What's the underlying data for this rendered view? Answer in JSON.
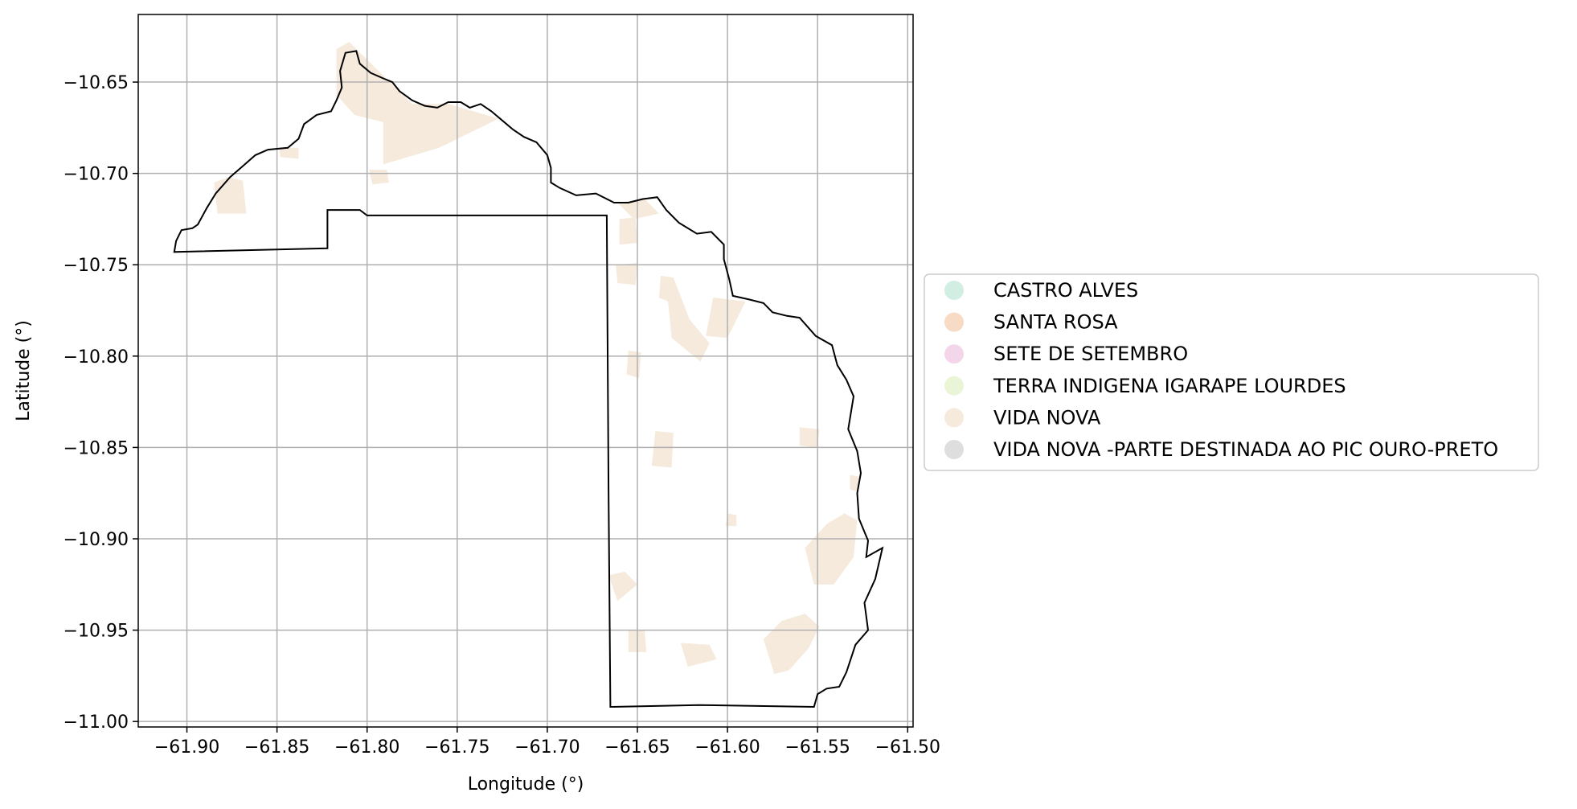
{
  "chart_data": {
    "type": "map",
    "title": "",
    "xlabel": "Longitude (°)",
    "ylabel": "Latitude (°)",
    "xlim": [
      -61.927,
      -61.497
    ],
    "ylim": [
      -11.003,
      -10.613
    ],
    "x_ticks": [
      -61.9,
      -61.85,
      -61.8,
      -61.75,
      -61.7,
      -61.65,
      -61.6,
      -61.55,
      -61.5
    ],
    "x_tick_labels": [
      "−61.90",
      "−61.85",
      "−61.80",
      "−61.75",
      "−61.70",
      "−61.65",
      "−61.60",
      "−61.55",
      "−61.50"
    ],
    "y_ticks": [
      -10.65,
      -10.7,
      -10.75,
      -10.8,
      -10.85,
      -10.9,
      -10.95,
      -11.0
    ],
    "y_tick_labels": [
      "−10.65",
      "−10.70",
      "−10.75",
      "−10.80",
      "−10.85",
      "−10.90",
      "−10.95",
      "−11.00"
    ],
    "grid": true,
    "legend_position": "right",
    "series": [
      {
        "name": "CASTRO ALVES",
        "color": "#d2ede2"
      },
      {
        "name": "SANTA ROSA",
        "color": "#f8dbc5"
      },
      {
        "name": "SETE DE SETEMBRO",
        "color": "#f4d6ea"
      },
      {
        "name": "TERRA INDIGENA IGARAPE LOURDES",
        "color": "#eaf5d8"
      },
      {
        "name": "VIDA NOVA",
        "color": "#f5eadc"
      },
      {
        "name": "VIDA NOVA -PARTE DESTINADA AO PIC OURO-PRETO",
        "color": "#dedede"
      }
    ],
    "boundary": [
      [
        -61.907,
        -10.743
      ],
      [
        -61.906,
        -10.737
      ],
      [
        -61.903,
        -10.731
      ],
      [
        -61.897,
        -10.73
      ],
      [
        -61.894,
        -10.728
      ],
      [
        -61.889,
        -10.719
      ],
      [
        -61.884,
        -10.711
      ],
      [
        -61.876,
        -10.702
      ],
      [
        -61.869,
        -10.696
      ],
      [
        -61.862,
        -10.69
      ],
      [
        -61.855,
        -10.687
      ],
      [
        -61.844,
        -10.686
      ],
      [
        -61.838,
        -10.681
      ],
      [
        -61.835,
        -10.673
      ],
      [
        -61.828,
        -10.668
      ],
      [
        -61.82,
        -10.666
      ],
      [
        -61.817,
        -10.66
      ],
      [
        -61.814,
        -10.653
      ],
      [
        -61.815,
        -10.644
      ],
      [
        -61.812,
        -10.634
      ],
      [
        -61.806,
        -10.633
      ],
      [
        -61.804,
        -10.64
      ],
      [
        -61.798,
        -10.645
      ],
      [
        -61.791,
        -10.648
      ],
      [
        -61.786,
        -10.65
      ],
      [
        -61.782,
        -10.655
      ],
      [
        -61.775,
        -10.66
      ],
      [
        -61.768,
        -10.663
      ],
      [
        -61.761,
        -10.664
      ],
      [
        -61.755,
        -10.661
      ],
      [
        -61.748,
        -10.661
      ],
      [
        -61.743,
        -10.664
      ],
      [
        -61.737,
        -10.662
      ],
      [
        -61.731,
        -10.666
      ],
      [
        -61.725,
        -10.671
      ],
      [
        -61.719,
        -10.676
      ],
      [
        -61.713,
        -10.68
      ],
      [
        -61.706,
        -10.683
      ],
      [
        -61.7,
        -10.69
      ],
      [
        -61.698,
        -10.697
      ],
      [
        -61.698,
        -10.705
      ],
      [
        -61.693,
        -10.708
      ],
      [
        -61.684,
        -10.712
      ],
      [
        -61.673,
        -10.711
      ],
      [
        -61.663,
        -10.716
      ],
      [
        -61.655,
        -10.716
      ],
      [
        -61.647,
        -10.714
      ],
      [
        -61.639,
        -10.713
      ],
      [
        -61.634,
        -10.72
      ],
      [
        -61.627,
        -10.727
      ],
      [
        -61.617,
        -10.733
      ],
      [
        -61.609,
        -10.732
      ],
      [
        -61.602,
        -10.739
      ],
      [
        -61.602,
        -10.747
      ],
      [
        -61.599,
        -10.758
      ],
      [
        -61.597,
        -10.767
      ],
      [
        -61.588,
        -10.769
      ],
      [
        -61.58,
        -10.771
      ],
      [
        -61.575,
        -10.776
      ],
      [
        -61.567,
        -10.778
      ],
      [
        -61.56,
        -10.779
      ],
      [
        -61.551,
        -10.789
      ],
      [
        -61.542,
        -10.794
      ],
      [
        -61.539,
        -10.805
      ],
      [
        -61.534,
        -10.813
      ],
      [
        -61.53,
        -10.822
      ],
      [
        -61.533,
        -10.84
      ],
      [
        -61.528,
        -10.852
      ],
      [
        -61.526,
        -10.864
      ],
      [
        -61.528,
        -10.875
      ],
      [
        -61.527,
        -10.889
      ],
      [
        -61.522,
        -10.901
      ],
      [
        -61.523,
        -10.91
      ],
      [
        -61.514,
        -10.905
      ],
      [
        -61.518,
        -10.922
      ],
      [
        -61.524,
        -10.935
      ],
      [
        -61.522,
        -10.95
      ],
      [
        -61.529,
        -10.958
      ],
      [
        -61.534,
        -10.973
      ],
      [
        -61.538,
        -10.981
      ],
      [
        -61.545,
        -10.982
      ],
      [
        -61.55,
        -10.985
      ],
      [
        -61.552,
        -10.992
      ],
      [
        -61.616,
        -10.991
      ],
      [
        -61.665,
        -10.992
      ],
      [
        -61.666,
        -10.873
      ],
      [
        -61.667,
        -10.723
      ],
      [
        -61.8,
        -10.723
      ],
      [
        -61.804,
        -10.72
      ],
      [
        -61.822,
        -10.72
      ],
      [
        -61.822,
        -10.741
      ],
      [
        -61.907,
        -10.743
      ]
    ],
    "vida_nova_patches": [
      [
        [
          -61.817,
          -10.632
        ],
        [
          -61.81,
          -10.628
        ],
        [
          -61.775,
          -10.662
        ],
        [
          -61.755,
          -10.662
        ],
        [
          -61.727,
          -10.67
        ],
        [
          -61.76,
          -10.686
        ],
        [
          -61.791,
          -10.695
        ],
        [
          -61.791,
          -10.672
        ],
        [
          -61.807,
          -10.668
        ],
        [
          -61.817,
          -10.657
        ]
      ],
      [
        [
          -61.885,
          -10.705
        ],
        [
          -61.877,
          -10.702
        ],
        [
          -61.869,
          -10.704
        ],
        [
          -61.867,
          -10.722
        ],
        [
          -61.883,
          -10.722
        ]
      ],
      [
        [
          -61.849,
          -10.686
        ],
        [
          -61.838,
          -10.686
        ],
        [
          -61.838,
          -10.692
        ],
        [
          -61.848,
          -10.691
        ]
      ],
      [
        [
          -61.799,
          -10.698
        ],
        [
          -61.789,
          -10.698
        ],
        [
          -61.788,
          -10.705
        ],
        [
          -61.797,
          -10.706
        ]
      ],
      [
        [
          -61.661,
          -10.716
        ],
        [
          -61.646,
          -10.714
        ],
        [
          -61.638,
          -10.722
        ],
        [
          -61.652,
          -10.725
        ]
      ],
      [
        [
          -61.66,
          -10.725
        ],
        [
          -61.651,
          -10.724
        ],
        [
          -61.65,
          -10.738
        ],
        [
          -61.66,
          -10.739
        ]
      ],
      [
        [
          -61.662,
          -10.75
        ],
        [
          -61.65,
          -10.749
        ],
        [
          -61.651,
          -10.761
        ],
        [
          -61.661,
          -10.76
        ]
      ],
      [
        [
          -61.638,
          -10.768
        ],
        [
          -61.633,
          -10.77
        ],
        [
          -61.631,
          -10.79
        ],
        [
          -61.615,
          -10.803
        ],
        [
          -61.61,
          -10.793
        ],
        [
          -61.621,
          -10.78
        ],
        [
          -61.63,
          -10.757
        ],
        [
          -61.637,
          -10.756
        ]
      ],
      [
        [
          -61.608,
          -10.768
        ],
        [
          -61.59,
          -10.77
        ],
        [
          -61.6,
          -10.79
        ],
        [
          -61.612,
          -10.789
        ]
      ],
      [
        [
          -61.655,
          -10.797
        ],
        [
          -61.648,
          -10.798
        ],
        [
          -61.649,
          -10.812
        ],
        [
          -61.656,
          -10.81
        ]
      ],
      [
        [
          -61.64,
          -10.841
        ],
        [
          -61.63,
          -10.842
        ],
        [
          -61.631,
          -10.861
        ],
        [
          -61.642,
          -10.86
        ]
      ],
      [
        [
          -61.56,
          -10.839
        ],
        [
          -61.549,
          -10.84
        ],
        [
          -61.55,
          -10.85
        ],
        [
          -61.56,
          -10.849
        ]
      ],
      [
        [
          -61.6,
          -10.886
        ],
        [
          -61.595,
          -10.887
        ],
        [
          -61.595,
          -10.893
        ],
        [
          -61.601,
          -10.893
        ]
      ],
      [
        [
          -61.557,
          -10.905
        ],
        [
          -61.545,
          -10.892
        ],
        [
          -61.535,
          -10.886
        ],
        [
          -61.528,
          -10.89
        ],
        [
          -61.53,
          -10.91
        ],
        [
          -61.541,
          -10.925
        ],
        [
          -61.552,
          -10.925
        ]
      ],
      [
        [
          -61.666,
          -10.92
        ],
        [
          -61.657,
          -10.918
        ],
        [
          -61.65,
          -10.925
        ],
        [
          -61.661,
          -10.934
        ]
      ],
      [
        [
          -61.58,
          -10.955
        ],
        [
          -61.57,
          -10.945
        ],
        [
          -61.557,
          -10.941
        ],
        [
          -61.549,
          -10.948
        ],
        [
          -61.555,
          -10.96
        ],
        [
          -61.566,
          -10.972
        ],
        [
          -61.574,
          -10.974
        ]
      ],
      [
        [
          -61.626,
          -10.957
        ],
        [
          -61.61,
          -10.958
        ],
        [
          -61.606,
          -10.966
        ],
        [
          -61.622,
          -10.97
        ]
      ],
      [
        [
          -61.655,
          -10.95
        ],
        [
          -61.646,
          -10.95
        ],
        [
          -61.645,
          -10.962
        ],
        [
          -61.655,
          -10.962
        ]
      ],
      [
        [
          -61.532,
          -10.865
        ],
        [
          -61.527,
          -10.866
        ],
        [
          -61.528,
          -10.874
        ],
        [
          -61.532,
          -10.873
        ]
      ]
    ]
  }
}
